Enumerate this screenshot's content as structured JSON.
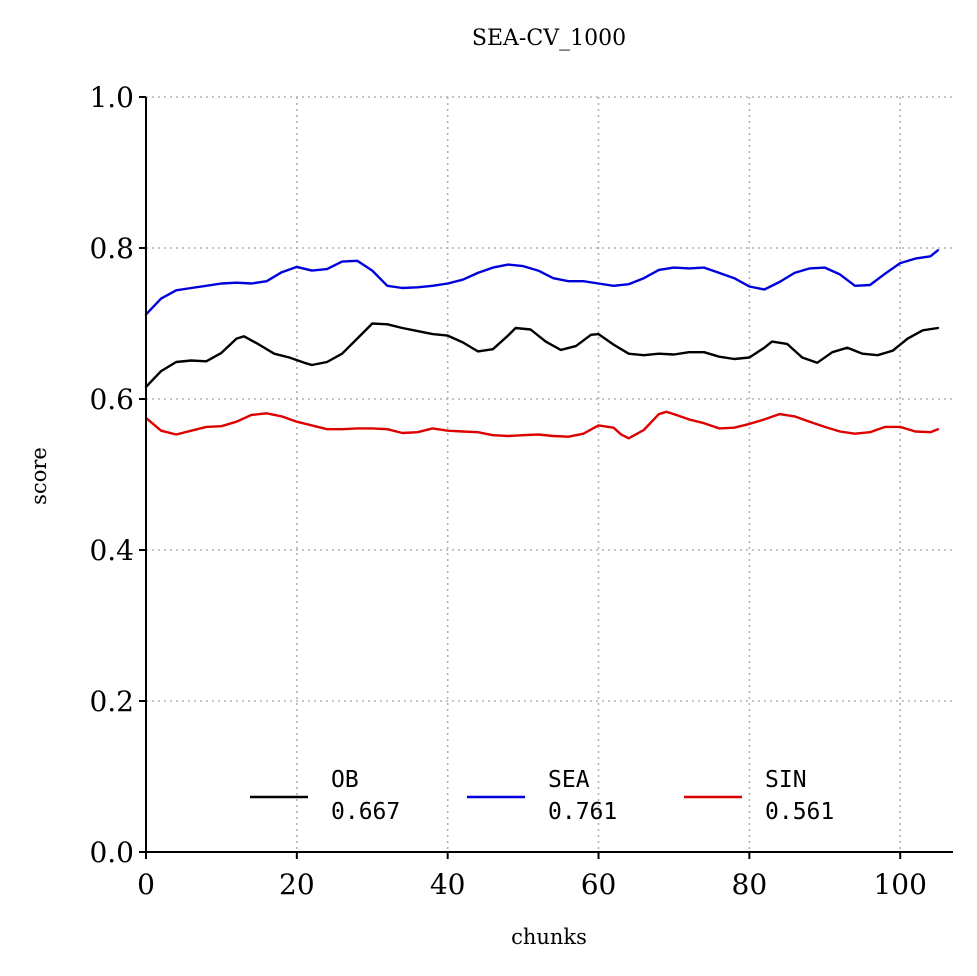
{
  "chart_data": {
    "type": "line",
    "title": "SEA-CV_1000",
    "xlabel": "chunks",
    "ylabel": "score",
    "xlim": [
      0,
      107
    ],
    "ylim": [
      0,
      1
    ],
    "xticks": [
      "0",
      "20",
      "40",
      "60",
      "80",
      "100"
    ],
    "yticks": [
      "0.0",
      "0.2",
      "0.4",
      "0.6",
      "0.8",
      "1.0"
    ],
    "grid": true,
    "legend_position": "bottom-center",
    "series": [
      {
        "name": "OB",
        "legend_value": "0.667",
        "color": "#000000",
        "x": [
          0,
          2,
          4,
          6,
          8,
          10,
          12,
          13,
          15,
          17,
          19,
          21,
          22,
          24,
          26,
          28,
          30,
          32,
          34,
          36,
          38,
          40,
          42,
          44,
          46,
          48,
          49,
          51,
          53,
          55,
          57,
          59,
          60,
          62,
          64,
          66,
          68,
          70,
          72,
          74,
          76,
          78,
          80,
          82,
          83,
          85,
          87,
          89,
          91,
          93,
          95,
          97,
          99,
          101,
          103,
          105
        ],
        "y": [
          0.616,
          0.637,
          0.649,
          0.651,
          0.65,
          0.661,
          0.68,
          0.683,
          0.672,
          0.66,
          0.655,
          0.648,
          0.645,
          0.649,
          0.66,
          0.68,
          0.7,
          0.699,
          0.694,
          0.69,
          0.686,
          0.684,
          0.675,
          0.663,
          0.666,
          0.684,
          0.694,
          0.692,
          0.676,
          0.665,
          0.67,
          0.685,
          0.686,
          0.672,
          0.66,
          0.658,
          0.66,
          0.659,
          0.662,
          0.662,
          0.656,
          0.653,
          0.655,
          0.668,
          0.676,
          0.673,
          0.655,
          0.648,
          0.662,
          0.668,
          0.66,
          0.658,
          0.664,
          0.68,
          0.691,
          0.694
        ]
      },
      {
        "name": "SEA",
        "legend_value": "0.761",
        "color": "#0000dd",
        "x": [
          0,
          2,
          4,
          6,
          8,
          10,
          12,
          14,
          16,
          18,
          20,
          22,
          24,
          26,
          28,
          30,
          32,
          34,
          36,
          38,
          40,
          42,
          44,
          46,
          48,
          50,
          52,
          54,
          56,
          58,
          60,
          62,
          64,
          66,
          68,
          70,
          72,
          74,
          76,
          78,
          80,
          82,
          84,
          86,
          88,
          90,
          92,
          94,
          96,
          98,
          100,
          102,
          104,
          105
        ],
        "y": [
          0.712,
          0.733,
          0.744,
          0.747,
          0.75,
          0.753,
          0.754,
          0.753,
          0.756,
          0.768,
          0.775,
          0.77,
          0.772,
          0.782,
          0.783,
          0.77,
          0.75,
          0.747,
          0.748,
          0.75,
          0.753,
          0.758,
          0.767,
          0.774,
          0.778,
          0.776,
          0.77,
          0.76,
          0.756,
          0.756,
          0.753,
          0.75,
          0.752,
          0.76,
          0.771,
          0.774,
          0.773,
          0.774,
          0.767,
          0.76,
          0.749,
          0.745,
          0.755,
          0.767,
          0.773,
          0.774,
          0.765,
          0.75,
          0.751,
          0.766,
          0.78,
          0.786,
          0.789,
          0.797
        ]
      },
      {
        "name": "SIN",
        "legend_value": "0.561",
        "color": "#dd0000",
        "x": [
          0,
          2,
          4,
          6,
          8,
          10,
          12,
          14,
          16,
          18,
          20,
          22,
          24,
          26,
          28,
          30,
          32,
          34,
          36,
          38,
          40,
          42,
          44,
          46,
          48,
          50,
          52,
          54,
          56,
          58,
          60,
          62,
          63,
          64,
          66,
          68,
          69,
          70,
          72,
          74,
          76,
          78,
          80,
          82,
          84,
          86,
          88,
          90,
          92,
          94,
          96,
          98,
          100,
          102,
          104,
          105
        ],
        "y": [
          0.575,
          0.558,
          0.553,
          0.558,
          0.563,
          0.564,
          0.57,
          0.579,
          0.581,
          0.577,
          0.57,
          0.565,
          0.56,
          0.56,
          0.561,
          0.561,
          0.56,
          0.555,
          0.556,
          0.561,
          0.558,
          0.557,
          0.556,
          0.552,
          0.551,
          0.552,
          0.553,
          0.551,
          0.55,
          0.554,
          0.565,
          0.562,
          0.553,
          0.548,
          0.559,
          0.58,
          0.583,
          0.58,
          0.573,
          0.568,
          0.561,
          0.562,
          0.567,
          0.573,
          0.58,
          0.577,
          0.57,
          0.563,
          0.557,
          0.554,
          0.556,
          0.563,
          0.563,
          0.557,
          0.556,
          0.56
        ]
      }
    ]
  }
}
